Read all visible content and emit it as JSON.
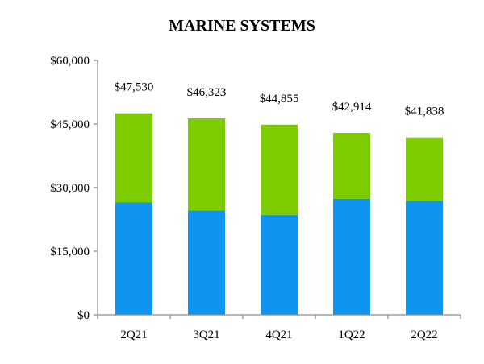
{
  "chart_data": {
    "type": "bar",
    "stacked": true,
    "title": "MARINE SYSTEMS",
    "categories": [
      "2Q21",
      "3Q21",
      "4Q21",
      "1Q22",
      "2Q22"
    ],
    "series": [
      {
        "values": [
          26500,
          24600,
          23600,
          27400,
          26900
        ],
        "color": "#0f95f0"
      },
      {
        "values": [
          21030,
          21723,
          21255,
          15514,
          14938
        ],
        "color": "#7ccc00"
      }
    ],
    "totals": [
      47530,
      46323,
      44855,
      42914,
      41838
    ],
    "data_labels": [
      "$47,530",
      "$46,323",
      "$44,855",
      "$42,914",
      "$41,838"
    ],
    "y_ticks": [
      0,
      15000,
      30000,
      45000,
      60000
    ],
    "y_tick_labels": [
      "$0",
      "$15,000",
      "$30,000",
      "$45,000",
      "$60,000"
    ],
    "ylim": [
      0,
      60000
    ],
    "grid": false,
    "legend": "none"
  }
}
